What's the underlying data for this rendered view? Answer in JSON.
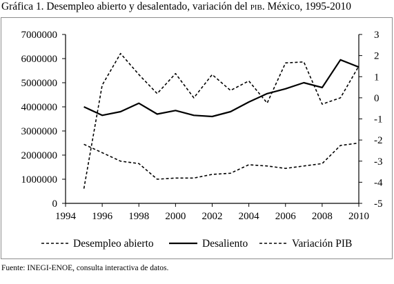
{
  "title": {
    "prefix": "Gráfica 1. Desempleo abierto y desalentado, variación del ",
    "pib": "PIB",
    "suffix": ". México, 1995-2010"
  },
  "source": "Fuente: INEGI-ENOE, consulta interactiva de datos.",
  "chart_data": {
    "type": "line",
    "title": "Gráfica 1. Desempleo abierto y desalentado, variación del PIB. México, 1995-2010",
    "x": [
      1995,
      1996,
      1997,
      1998,
      1999,
      2000,
      2001,
      2002,
      2003,
      2004,
      2005,
      2006,
      2007,
      2008,
      2009,
      2010
    ],
    "xlim": [
      1994,
      2010
    ],
    "xticks": [
      "1994",
      "1996",
      "1998",
      "2000",
      "2002",
      "2004",
      "2006",
      "2008",
      "2010"
    ],
    "ylim": [
      0,
      7000000
    ],
    "yticks": [
      "0",
      "1000000",
      "2000000",
      "3000000",
      "4000000",
      "5000000",
      "6000000",
      "7000000"
    ],
    "y2lim": [
      -5,
      3
    ],
    "y2ticks": [
      "-5",
      "-4",
      "-3",
      "-2",
      "-1",
      "0",
      "1",
      "2",
      "3"
    ],
    "grid": false,
    "legend_position": "bottom",
    "series": [
      {
        "name": "Desempleo abierto",
        "axis": "left",
        "style": "dashed",
        "values": [
          2450000,
          2100000,
          1750000,
          1650000,
          1000000,
          1050000,
          1050000,
          1200000,
          1250000,
          1600000,
          1550000,
          1450000,
          1550000,
          1650000,
          2400000,
          2500000
        ]
      },
      {
        "name": "Desaliento",
        "axis": "left",
        "style": "solid",
        "values": [
          4000000,
          3650000,
          3800000,
          4150000,
          3700000,
          3850000,
          3650000,
          3600000,
          3800000,
          4200000,
          4550000,
          4750000,
          5000000,
          4800000,
          5950000,
          5650000
        ]
      },
      {
        "name": "Variación PIB",
        "axis": "right",
        "style": "dashed",
        "values": [
          -4.3,
          0.6,
          2.1,
          1.1,
          0.2,
          1.15,
          0.0,
          1.1,
          0.35,
          0.8,
          -0.25,
          1.65,
          1.7,
          -0.3,
          0.0,
          1.5
        ]
      }
    ]
  }
}
